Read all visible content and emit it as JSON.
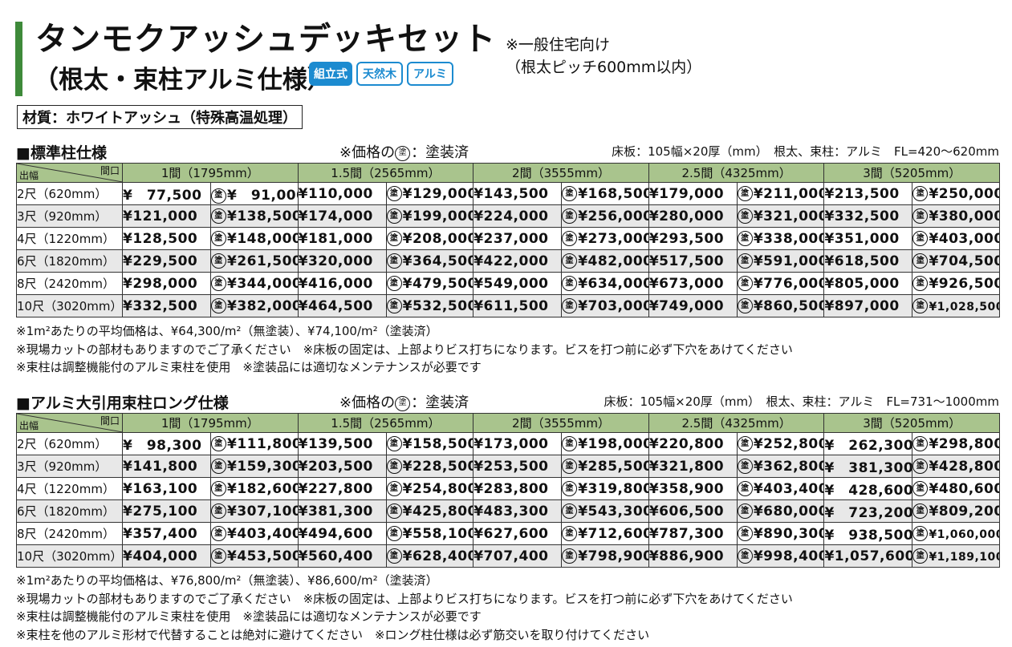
{
  "header": {
    "title_line1": "タンモクアッシュデッキセット",
    "title_line2": "（根太・束柱アルミ仕様）",
    "badges": [
      "組立式",
      "天然木",
      "アルミ"
    ],
    "note_line1": "※一般住宅向け",
    "note_line2": "（根太ピッチ600mm以内）",
    "material": "材質：ホワイトアッシュ（特殊高温処理）"
  },
  "corner": {
    "top": "間口",
    "bottom": "出幅"
  },
  "nuri_symbol": "塗",
  "columns": [
    "1間（1795mm）",
    "1.5間（2565mm）",
    "2間（3555mm）",
    "2.5間（4325mm）",
    "3間（5205mm）"
  ],
  "sections": [
    {
      "title": "■標準柱仕様",
      "mid_prefix": "※価格の",
      "mid_suffix": "：塗装済",
      "right": "床板：105幅×20厚（mm）　根太、束柱：アルミ　FL=420〜620mm",
      "rows": [
        {
          "label": "2尺（620mm）",
          "prices": [
            "¥　77,500",
            "¥　91,000",
            "¥110,000",
            "¥129,000",
            "¥143,500",
            "¥168,500",
            "¥179,000",
            "¥211,000",
            "¥213,500",
            "¥250,000"
          ]
        },
        {
          "label": "3尺（920mm）",
          "prices": [
            "¥121,000",
            "¥138,500",
            "¥174,000",
            "¥199,000",
            "¥224,000",
            "¥256,000",
            "¥280,000",
            "¥321,000",
            "¥332,500",
            "¥380,000"
          ]
        },
        {
          "label": "4尺（1220mm）",
          "prices": [
            "¥128,500",
            "¥148,000",
            "¥181,000",
            "¥208,000",
            "¥237,000",
            "¥273,000",
            "¥293,500",
            "¥338,000",
            "¥351,000",
            "¥403,000"
          ]
        },
        {
          "label": "6尺（1820mm）",
          "prices": [
            "¥229,500",
            "¥261,500",
            "¥320,000",
            "¥364,500",
            "¥422,000",
            "¥482,000",
            "¥517,500",
            "¥591,000",
            "¥618,500",
            "¥704,500"
          ]
        },
        {
          "label": "8尺（2420mm）",
          "prices": [
            "¥298,000",
            "¥344,000",
            "¥416,000",
            "¥479,500",
            "¥549,000",
            "¥634,000",
            "¥673,000",
            "¥776,000",
            "¥805,000",
            "¥926,500"
          ]
        },
        {
          "label": "10尺（3020mm）",
          "prices": [
            "¥332,500",
            "¥382,000",
            "¥464,500",
            "¥532,500",
            "¥611,500",
            "¥703,000",
            "¥749,000",
            "¥860,500",
            "¥897,000",
            "¥1,028,500"
          ]
        }
      ],
      "notes": [
        "※1m²あたりの平均価格は、¥64,300/m²（無塗装）、¥74,100/m²（塗装済）",
        "※現場カットの部材もありますのでご了承ください　※床板の固定は、上部よりビス打ちになります。ビスを打つ前に必ず下穴をあけてください",
        "※束柱は調整機能付のアルミ束柱を使用　※塗装品には適切なメンテナンスが必要です"
      ]
    },
    {
      "title": "■アルミ大引用束柱ロング仕様",
      "mid_prefix": "※価格の",
      "mid_suffix": "：塗装済",
      "right": "床板：105幅×20厚（mm）　根太、束柱：アルミ　FL=731〜1000mm",
      "rows": [
        {
          "label": "2尺（620mm）",
          "prices": [
            "¥　98,300",
            "¥111,800",
            "¥139,500",
            "¥158,500",
            "¥173,000",
            "¥198,000",
            "¥220,800",
            "¥252,800",
            "¥　262,300",
            "¥298,800"
          ]
        },
        {
          "label": "3尺（920mm）",
          "prices": [
            "¥141,800",
            "¥159,300",
            "¥203,500",
            "¥228,500",
            "¥253,500",
            "¥285,500",
            "¥321,800",
            "¥362,800",
            "¥　381,300",
            "¥428,800"
          ]
        },
        {
          "label": "4尺（1220mm）",
          "prices": [
            "¥163,100",
            "¥182,600",
            "¥227,800",
            "¥254,800",
            "¥283,800",
            "¥319,800",
            "¥358,900",
            "¥403,400",
            "¥　428,600",
            "¥480,600"
          ]
        },
        {
          "label": "6尺（1820mm）",
          "prices": [
            "¥275,100",
            "¥307,100",
            "¥381,300",
            "¥425,800",
            "¥483,300",
            "¥543,300",
            "¥606,500",
            "¥680,000",
            "¥　723,200",
            "¥809,200"
          ]
        },
        {
          "label": "8尺（2420mm）",
          "prices": [
            "¥357,400",
            "¥403,400",
            "¥494,600",
            "¥558,100",
            "¥627,600",
            "¥712,600",
            "¥787,300",
            "¥890,300",
            "¥　938,500",
            "¥1,060,000"
          ]
        },
        {
          "label": "10尺（3020mm）",
          "prices": [
            "¥404,000",
            "¥453,500",
            "¥560,400",
            "¥628,400",
            "¥707,400",
            "¥798,900",
            "¥886,900",
            "¥998,400",
            "¥1,057,600",
            "¥1,189,100"
          ]
        }
      ],
      "notes": [
        "※1m²あたりの平均価格は、¥76,800/m²（無塗装）、¥86,600/m²（塗装済）",
        "※現場カットの部材もありますのでご了承ください　※床板の固定は、上部よりビス打ちになります。ビスを打つ前に必ず下穴をあけてください",
        "※束柱は調整機能付のアルミ束柱を使用　※塗装品には適切なメンテナンスが必要です",
        "※束柱を他のアルミ形材で代替することは絶対に避けてください　※ロング柱仕様は必ず筋交いを取り付けてください"
      ]
    }
  ]
}
